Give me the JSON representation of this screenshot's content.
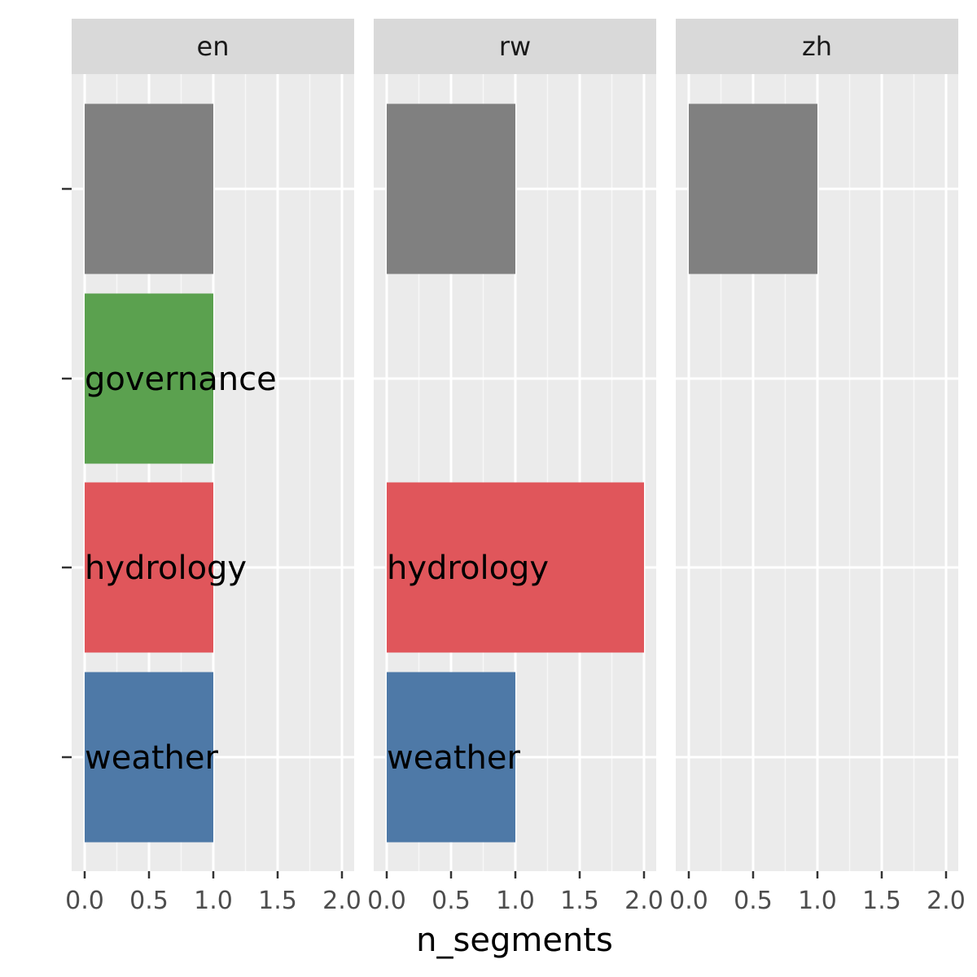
{
  "chart_data": {
    "type": "bar",
    "orientation": "horizontal",
    "facet_by": "language",
    "xlabel": "n_segments",
    "ylabel": "",
    "xlim": [
      0,
      2
    ],
    "x_ticks": [
      0.0,
      0.5,
      1.0,
      1.5,
      2.0
    ],
    "x_tick_labels": [
      "0.0",
      "0.5",
      "1.0",
      "1.5",
      "2.0"
    ],
    "categories": [
      "",
      "governance",
      "hydrology",
      "weather"
    ],
    "category_colors": {
      "": "#808080",
      "governance": "#5BA14F",
      "hydrology": "#E0565B",
      "weather": "#4E79A7"
    },
    "grid": true,
    "legend": "none",
    "panels": [
      {
        "name": "en",
        "values": [
          1,
          1,
          1,
          1
        ],
        "labels": [
          "",
          "governance",
          "hydrology",
          "weather"
        ]
      },
      {
        "name": "rw",
        "values": [
          1,
          0,
          2,
          1
        ],
        "labels": [
          "",
          "",
          "hydrology",
          "weather"
        ]
      },
      {
        "name": "zh",
        "values": [
          1,
          0,
          0,
          0
        ],
        "labels": [
          "",
          "",
          "",
          ""
        ]
      }
    ],
    "colors": {
      "panel_background": "#EBEBEB",
      "strip_background": "#D9D9D9",
      "grid_major": "#FFFFFF",
      "grid_minor": "#F7F7F7",
      "tick": "#333333"
    }
  }
}
